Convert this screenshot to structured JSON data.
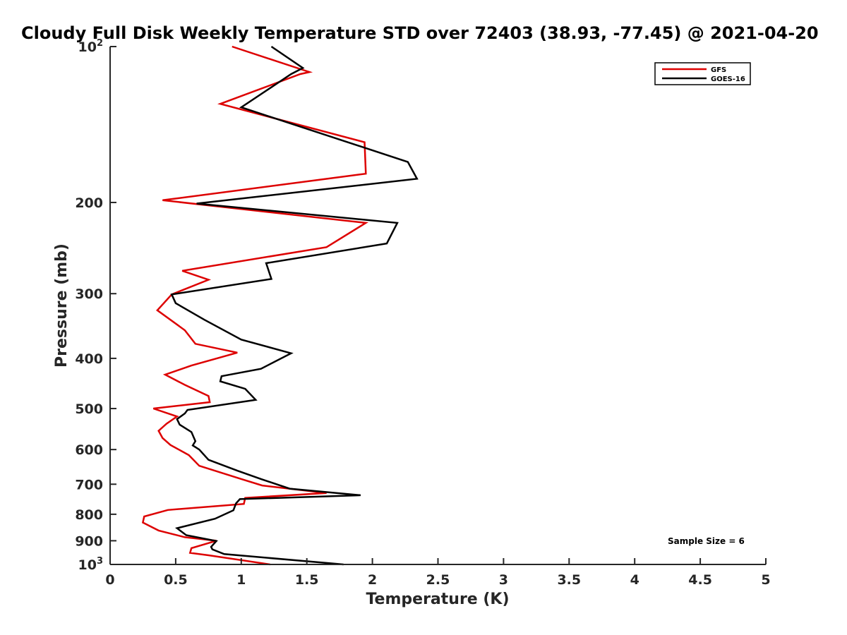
{
  "chart_data": {
    "type": "line",
    "title": "Cloudy Full Disk Weekly Temperature STD over 72403 (38.93, -77.45) @ 2021-04-20",
    "xlabel": "Temperature (K)",
    "ylabel": "Pressure (mb)",
    "xlim": [
      0,
      5
    ],
    "ylim": [
      1000,
      100
    ],
    "y_scale": "log",
    "y_reversed": true,
    "grid": false,
    "legend_position": "top-right",
    "x_ticks": [
      "0",
      "0.5",
      "1",
      "1.5",
      "2",
      "2.5",
      "3",
      "3.5",
      "4",
      "4.5",
      "5"
    ],
    "y_ticks": [
      {
        "value": 100,
        "base": "10",
        "exp": "2"
      },
      {
        "value": 200,
        "label": "200"
      },
      {
        "value": 300,
        "label": "300"
      },
      {
        "value": 400,
        "label": "400"
      },
      {
        "value": 500,
        "label": "500"
      },
      {
        "value": 600,
        "label": "600"
      },
      {
        "value": 700,
        "label": "700"
      },
      {
        "value": 800,
        "label": "800"
      },
      {
        "value": 900,
        "label": "900"
      },
      {
        "value": 1000,
        "base": "10",
        "exp": "3"
      }
    ],
    "annotation": "Sample Size = 6",
    "series": [
      {
        "name": "GFS",
        "color": "#dd0000",
        "x": [
          0.93,
          1.52,
          1.45,
          0.84,
          1.94,
          1.95,
          0.4,
          1.95,
          1.65,
          0.55,
          0.75,
          0.47,
          0.36,
          0.57,
          0.65,
          0.97,
          0.62,
          0.42,
          0.57,
          0.75,
          0.76,
          0.33,
          0.51,
          0.43,
          0.37,
          0.4,
          0.46,
          0.6,
          0.68,
          1.0,
          1.16,
          1.65,
          1.03,
          1.02,
          0.44,
          0.26,
          0.25,
          0.37,
          0.57,
          0.81,
          0.62,
          0.61,
          0.75,
          1.22
        ],
        "y": [
          100,
          112,
          113,
          129,
          153,
          176,
          198,
          219,
          244,
          271,
          282,
          301,
          323,
          353,
          375,
          390,
          413,
          430,
          450,
          473,
          486,
          500,
          518,
          535,
          552,
          570,
          588,
          615,
          645,
          684,
          704,
          728,
          744,
          764,
          785,
          808,
          830,
          860,
          886,
          900,
          930,
          950,
          960,
          1000
        ]
      },
      {
        "name": "GOES-16",
        "color": "#000000",
        "x": [
          1.23,
          1.47,
          1.38,
          1.0,
          2.27,
          2.34,
          0.66,
          2.19,
          2.11,
          1.19,
          1.23,
          0.47,
          0.5,
          0.72,
          1.0,
          1.38,
          1.15,
          0.85,
          0.84,
          1.03,
          1.11,
          0.59,
          0.57,
          0.51,
          0.53,
          0.62,
          0.65,
          0.63,
          0.68,
          0.75,
          0.97,
          1.15,
          1.37,
          1.91,
          0.99,
          0.96,
          0.94,
          0.8,
          0.51,
          0.58,
          0.81,
          0.77,
          0.78,
          0.87,
          1.78
        ],
        "y": [
          100,
          110,
          113,
          131,
          167,
          180,
          201,
          219,
          240,
          262,
          281,
          301,
          313,
          337,
          368,
          391,
          419,
          433,
          443,
          458,
          481,
          503,
          511,
          524,
          537,
          555,
          578,
          589,
          600,
          628,
          659,
          684,
          714,
          735,
          748,
          762,
          786,
          816,
          851,
          878,
          901,
          925,
          935,
          955,
          1000
        ]
      }
    ]
  }
}
